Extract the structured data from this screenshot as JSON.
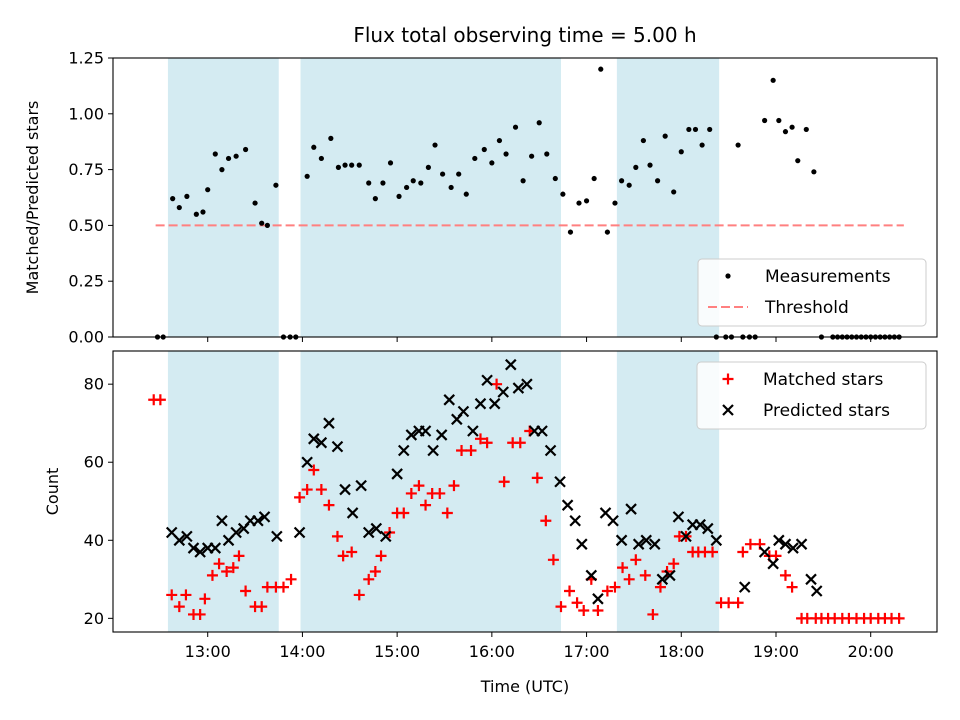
{
  "chart_data": [
    {
      "type": "scatter",
      "title": "Flux total observing time = 5.00 h",
      "xlabel": "",
      "ylabel": "Matched/Predicted stars",
      "xlim": [
        12.0,
        20.7
      ],
      "ylim": [
        0.0,
        1.25
      ],
      "yticks": [
        0.0,
        0.25,
        0.5,
        0.75,
        1.0,
        1.25
      ],
      "ytick_labels": [
        "0.00",
        "0.25",
        "0.50",
        "0.75",
        "1.00",
        "1.25"
      ],
      "shaded_intervals": [
        [
          12.58,
          13.75
        ],
        [
          13.98,
          16.73
        ],
        [
          17.32,
          18.4
        ]
      ],
      "legend": [
        "Measurements",
        "Threshold"
      ],
      "threshold": {
        "y": 0.5,
        "x_range": [
          12.45,
          20.35
        ],
        "color": "#ff8080"
      },
      "measurements": {
        "x": [
          12.47,
          12.53,
          12.63,
          12.7,
          12.78,
          12.88,
          12.95,
          13.0,
          13.08,
          13.15,
          13.22,
          13.3,
          13.4,
          13.5,
          13.57,
          13.63,
          13.72,
          13.8,
          13.87,
          13.93,
          14.05,
          14.12,
          14.2,
          14.3,
          14.38,
          14.45,
          14.52,
          14.6,
          14.7,
          14.77,
          14.85,
          14.93,
          15.02,
          15.1,
          15.17,
          15.25,
          15.33,
          15.4,
          15.48,
          15.57,
          15.65,
          15.73,
          15.82,
          15.92,
          16.0,
          16.08,
          16.15,
          16.25,
          16.33,
          16.42,
          16.5,
          16.58,
          16.67,
          16.75,
          16.83,
          16.92,
          17.0,
          17.08,
          17.15,
          17.22,
          17.3,
          17.37,
          17.45,
          17.52,
          17.6,
          17.67,
          17.75,
          17.83,
          17.92,
          18.0,
          18.08,
          18.15,
          18.22,
          18.3,
          18.37,
          18.47,
          18.53,
          18.6,
          18.65,
          18.72,
          18.78,
          18.88,
          18.97,
          19.03,
          19.1,
          19.17,
          19.23,
          19.32,
          19.4,
          19.48,
          19.6,
          19.65,
          19.7,
          19.75,
          19.8,
          19.85,
          19.9,
          19.95,
          20.0,
          20.05,
          20.1,
          20.15,
          20.2,
          20.25,
          20.3
        ],
        "y": [
          0.0,
          0.0,
          0.62,
          0.58,
          0.63,
          0.55,
          0.56,
          0.66,
          0.82,
          0.75,
          0.8,
          0.81,
          0.84,
          0.6,
          0.51,
          0.5,
          0.68,
          0.0,
          0.0,
          0.0,
          0.72,
          0.85,
          0.8,
          0.89,
          0.76,
          0.77,
          0.77,
          0.77,
          0.69,
          0.62,
          0.69,
          0.78,
          0.63,
          0.67,
          0.7,
          0.69,
          0.76,
          0.86,
          0.73,
          0.67,
          0.73,
          0.64,
          0.8,
          0.84,
          0.78,
          0.88,
          0.82,
          0.94,
          0.7,
          0.81,
          0.96,
          0.82,
          0.71,
          0.64,
          0.47,
          0.6,
          0.61,
          0.71,
          1.2,
          0.47,
          0.6,
          0.7,
          0.68,
          0.76,
          0.88,
          0.77,
          0.7,
          0.9,
          0.65,
          0.83,
          0.93,
          0.93,
          0.86,
          0.93,
          0.0,
          0.0,
          0.0,
          0.86,
          0.0,
          0.0,
          0.0,
          0.97,
          1.15,
          0.97,
          0.92,
          0.94,
          0.79,
          0.93,
          0.74,
          0.0,
          0.0,
          0.0,
          0.0,
          0.0,
          0.0,
          0.0,
          0.0,
          0.0,
          0.0,
          0.0,
          0.0,
          0.0,
          0.0,
          0.0,
          0.0
        ]
      }
    },
    {
      "type": "scatter",
      "title": "",
      "xlabel": "Time (UTC)",
      "ylabel": "Count",
      "xlim": [
        12.0,
        20.7
      ],
      "ylim": [
        16.5,
        88.5
      ],
      "yticks": [
        20,
        40,
        60,
        80
      ],
      "ytick_labels": [
        "20",
        "40",
        "60",
        "80"
      ],
      "xticks": [
        13,
        14,
        15,
        16,
        17,
        18,
        19,
        20
      ],
      "xtick_labels": [
        "13:00",
        "14:00",
        "15:00",
        "16:00",
        "17:00",
        "18:00",
        "19:00",
        "20:00"
      ],
      "shaded_intervals": [
        [
          12.58,
          13.75
        ],
        [
          13.98,
          16.73
        ],
        [
          17.32,
          18.4
        ]
      ],
      "legend": [
        "Matched stars",
        "Predicted stars"
      ],
      "series": [
        {
          "name": "Matched stars",
          "marker": "plus",
          "color": "#ff0000",
          "x": [
            12.43,
            12.5,
            12.62,
            12.7,
            12.77,
            12.85,
            12.92,
            12.97,
            13.05,
            13.12,
            13.2,
            13.27,
            13.33,
            13.4,
            13.5,
            13.57,
            13.63,
            13.72,
            13.8,
            13.88,
            13.97,
            14.05,
            14.12,
            14.2,
            14.28,
            14.37,
            14.43,
            14.52,
            14.6,
            14.7,
            14.77,
            14.83,
            14.92,
            15.0,
            15.07,
            15.15,
            15.23,
            15.3,
            15.37,
            15.45,
            15.53,
            15.6,
            15.68,
            15.78,
            15.88,
            15.95,
            16.05,
            16.13,
            16.22,
            16.3,
            16.4,
            16.48,
            16.57,
            16.65,
            16.73,
            16.82,
            16.9,
            16.97,
            17.05,
            17.12,
            17.22,
            17.3,
            17.38,
            17.45,
            17.52,
            17.62,
            17.7,
            17.78,
            17.85,
            17.92,
            17.98,
            18.05,
            18.12,
            18.18,
            18.25,
            18.33,
            18.42,
            18.5,
            18.6,
            18.65,
            18.73,
            18.83,
            18.93,
            19.0,
            19.1,
            19.17,
            19.27,
            19.33,
            19.42,
            19.48,
            19.55,
            19.62,
            19.7,
            19.77,
            19.85,
            19.93,
            20.0,
            20.08,
            20.15,
            20.22,
            20.3
          ],
          "y": [
            76,
            76,
            26,
            23,
            26,
            21,
            21,
            25,
            31,
            34,
            32,
            33,
            36,
            27,
            23,
            23,
            28,
            28,
            28,
            30,
            51,
            53,
            58,
            53,
            49,
            41,
            36,
            37,
            26,
            30,
            32,
            36,
            42,
            47,
            47,
            52,
            54,
            49,
            52,
            52,
            47,
            54,
            63,
            63,
            66,
            65,
            80,
            55,
            65,
            65,
            68,
            56,
            45,
            35,
            23,
            27,
            24,
            22,
            30,
            22,
            27,
            28,
            33,
            30,
            35,
            31,
            21,
            28,
            32,
            34,
            41,
            41,
            37,
            37,
            37,
            37,
            24,
            24,
            24,
            37,
            39,
            39,
            36,
            36,
            31,
            28,
            20,
            20,
            20,
            20,
            20,
            20,
            20,
            20,
            20,
            20,
            20,
            20,
            20,
            20,
            20
          ]
        },
        {
          "name": "Predicted stars",
          "marker": "x",
          "color": "#000000",
          "x": [
            12.62,
            12.7,
            12.78,
            12.85,
            12.92,
            13.0,
            13.08,
            13.15,
            13.22,
            13.3,
            13.38,
            13.45,
            13.53,
            13.6,
            13.73,
            13.97,
            14.05,
            14.12,
            14.2,
            14.28,
            14.37,
            14.45,
            14.53,
            14.62,
            14.7,
            14.78,
            14.88,
            15.0,
            15.07,
            15.15,
            15.23,
            15.3,
            15.38,
            15.47,
            15.55,
            15.63,
            15.7,
            15.8,
            15.88,
            15.95,
            16.03,
            16.12,
            16.2,
            16.28,
            16.37,
            16.45,
            16.53,
            16.62,
            16.72,
            16.8,
            16.88,
            16.95,
            17.05,
            17.12,
            17.2,
            17.28,
            17.37,
            17.47,
            17.55,
            17.63,
            17.72,
            17.8,
            17.88,
            17.97,
            18.05,
            18.12,
            18.2,
            18.28,
            18.37,
            18.67,
            18.88,
            18.97,
            19.03,
            19.1,
            19.18,
            19.27,
            19.37,
            19.43
          ],
          "y": [
            42,
            40,
            41,
            38,
            37,
            38,
            38,
            45,
            40,
            42,
            43,
            45,
            45,
            46,
            41,
            42,
            60,
            66,
            65,
            70,
            64,
            53,
            47,
            54,
            42,
            43,
            41,
            57,
            63,
            67,
            68,
            68,
            63,
            67,
            76,
            71,
            73,
            68,
            75,
            81,
            75,
            78,
            85,
            79,
            80,
            68,
            68,
            63,
            55,
            49,
            45,
            39,
            31,
            25,
            47,
            45,
            40,
            48,
            39,
            40,
            39,
            30,
            31,
            46,
            41,
            44,
            44,
            43,
            40,
            28,
            37,
            34,
            40,
            39,
            38,
            39,
            30,
            27
          ]
        }
      ]
    }
  ]
}
